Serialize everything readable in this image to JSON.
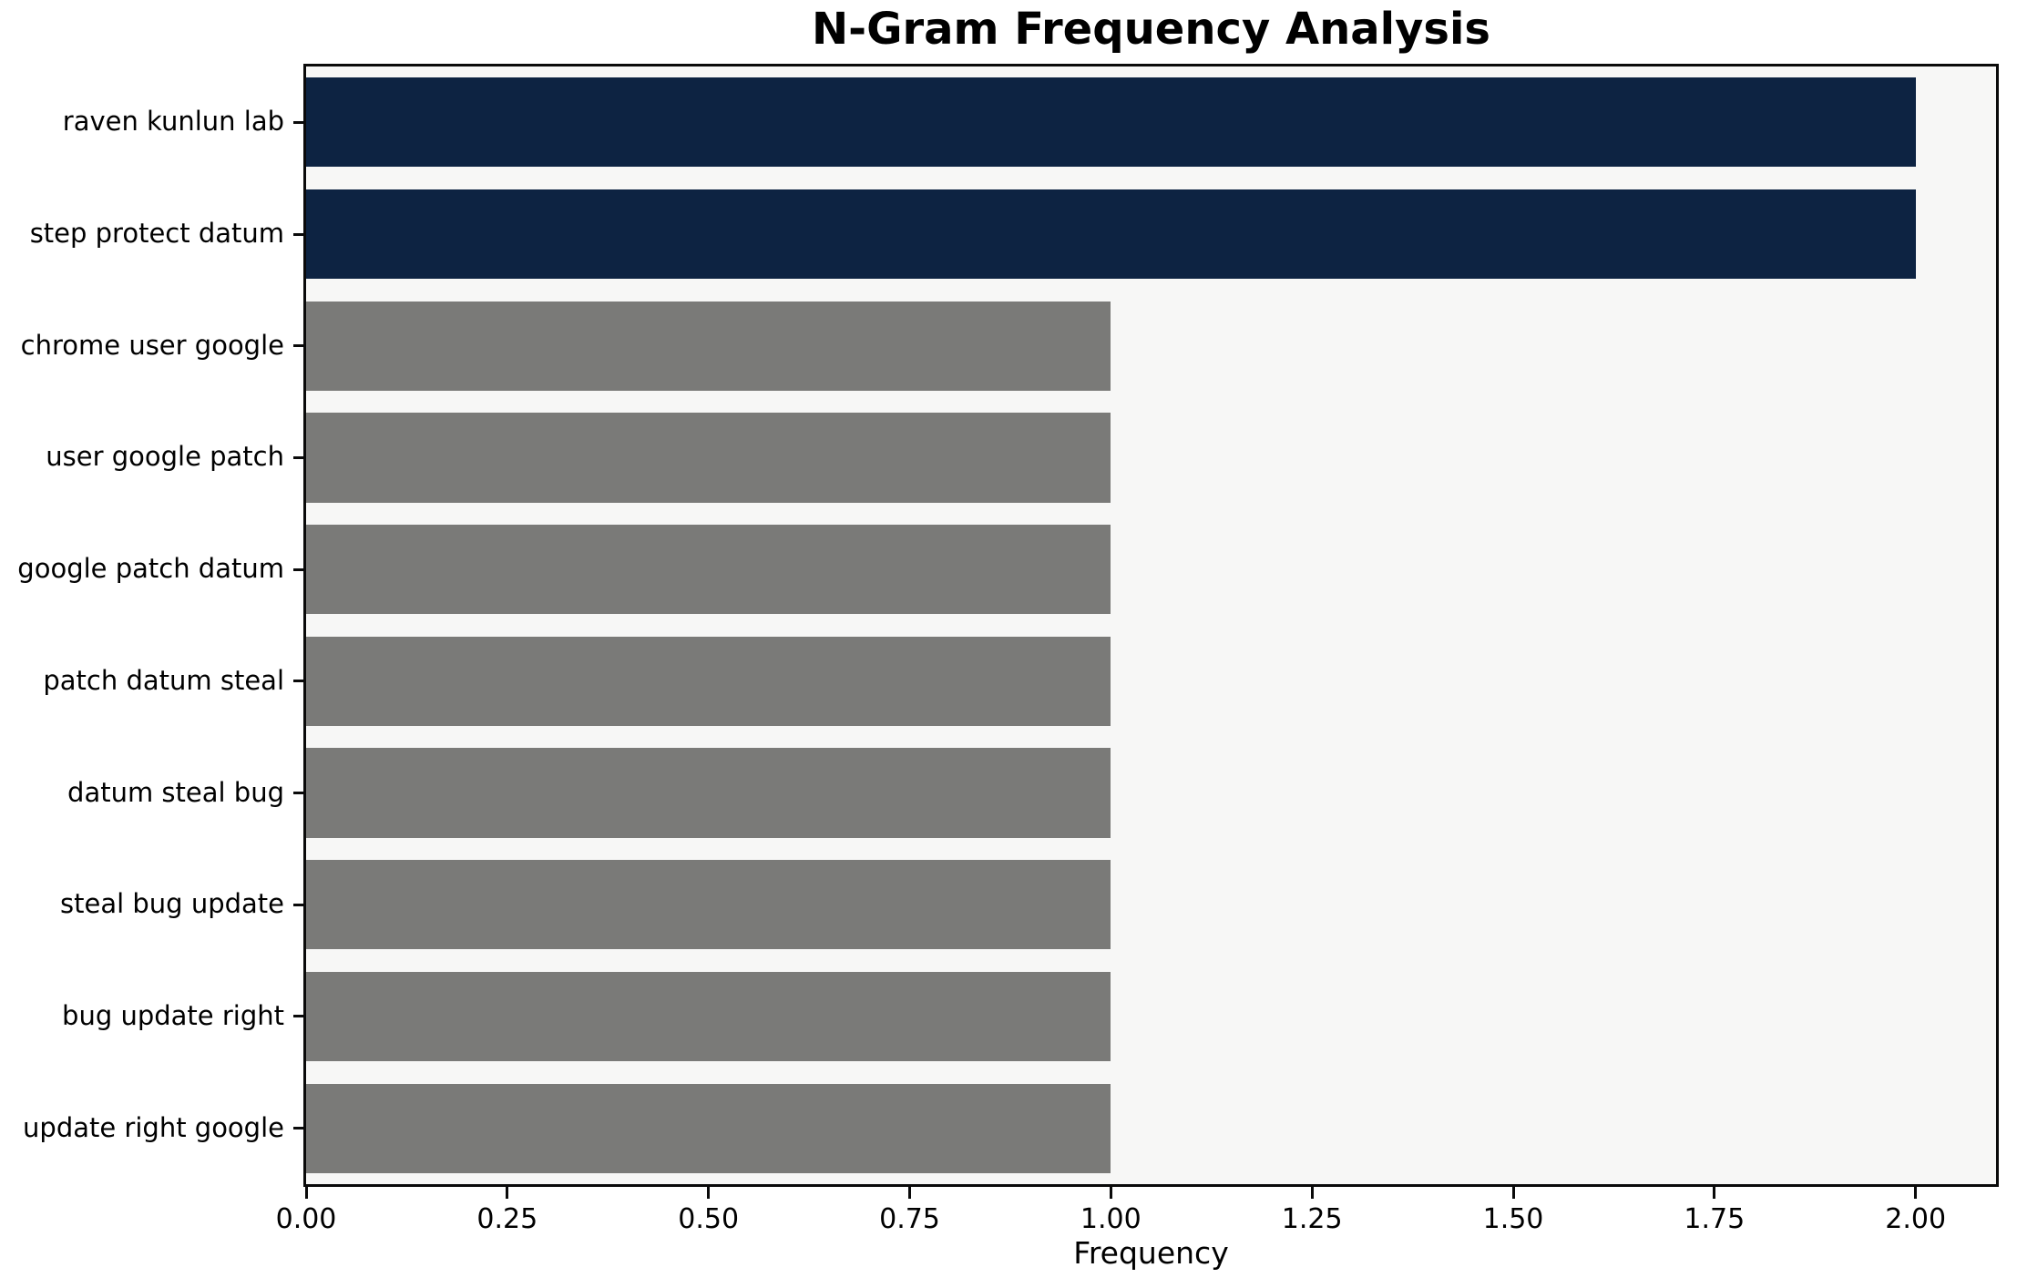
{
  "chart_data": {
    "type": "bar",
    "orientation": "horizontal",
    "title": "N-Gram Frequency Analysis",
    "xlabel": "Frequency",
    "ylabel": "",
    "categories": [
      "raven kunlun lab",
      "step protect datum",
      "chrome user google",
      "user google patch",
      "google patch datum",
      "patch datum steal",
      "datum steal bug",
      "steal bug update",
      "bug update right",
      "update right google"
    ],
    "values": [
      2,
      2,
      1,
      1,
      1,
      1,
      1,
      1,
      1,
      1
    ],
    "bar_colors": [
      "#0d2342",
      "#0d2342",
      "#7a7a78",
      "#7a7a78",
      "#7a7a78",
      "#7a7a78",
      "#7a7a78",
      "#7a7a78",
      "#7a7a78",
      "#7a7a78"
    ],
    "highlight_color": "#0d2342",
    "default_color": "#7a7a78",
    "xlim": [
      0,
      2.1
    ],
    "xticks": [
      0.0,
      0.25,
      0.5,
      0.75,
      1.0,
      1.25,
      1.5,
      1.75,
      2.0
    ],
    "xtick_labels": [
      "0.00",
      "0.25",
      "0.50",
      "0.75",
      "1.00",
      "1.25",
      "1.50",
      "1.75",
      "2.00"
    ],
    "grid": false,
    "legend": null,
    "bar_relative_height": 0.8,
    "plot_background": "#f7f7f6",
    "figure_background": "#ffffff",
    "axis_color": "#0a0a0a",
    "text_color": "#000000"
  }
}
